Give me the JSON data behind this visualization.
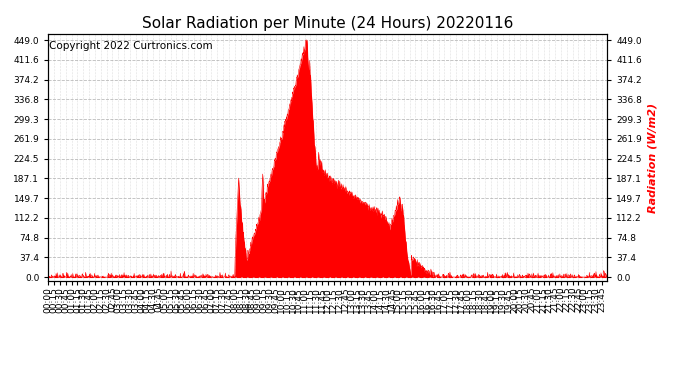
{
  "title": "Solar Radiation per Minute (24 Hours) 20220116",
  "ylabel": "Radiation (W/m2)",
  "ylabel_color": "red",
  "copyright_text": "Copyright 2022 Curtronics.com",
  "copyright_color": "black",
  "fill_color": "red",
  "line_color": "red",
  "bg_color": "white",
  "grid_color": "#aaaaaa",
  "dashed_line_color": "red",
  "ymin": 0.0,
  "ymax": 449.0,
  "yticks": [
    0.0,
    37.4,
    74.8,
    112.2,
    149.7,
    187.1,
    224.5,
    261.9,
    299.3,
    336.8,
    374.2,
    411.6,
    449.0
  ],
  "total_minutes": 1440,
  "title_fontsize": 11,
  "label_fontsize": 8,
  "tick_fontsize": 6.5,
  "copyright_fontsize": 7.5
}
